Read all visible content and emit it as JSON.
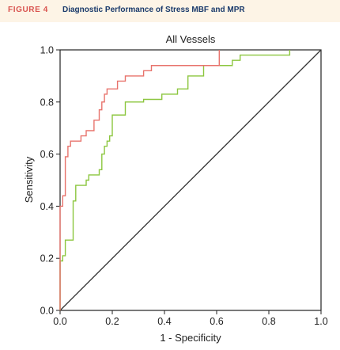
{
  "figure": {
    "label": "FIGURE 4",
    "title": "Diagnostic Performance of Stress MBF and MPR"
  },
  "chart_data": {
    "type": "line",
    "title": "All Vessels",
    "xlabel": "1 - Specificity",
    "ylabel": "Sensitivity",
    "xlim": [
      0,
      1
    ],
    "ylim": [
      0,
      1
    ],
    "x_ticks": [
      "0.0",
      "0.2",
      "0.4",
      "0.6",
      "0.8",
      "1.0"
    ],
    "y_ticks": [
      "0.0",
      "0.2",
      "0.4",
      "0.6",
      "0.8",
      "1.0"
    ],
    "grid": false,
    "legend": "none",
    "colors": {
      "red": "#e8736c",
      "green": "#8cc63f",
      "reference": "#333333"
    },
    "series": [
      {
        "color": "red",
        "x": [
          0,
          0,
          0.01,
          0.01,
          0.02,
          0.02,
          0.03,
          0.03,
          0.04,
          0.04,
          0.08,
          0.08,
          0.1,
          0.1,
          0.13,
          0.13,
          0.15,
          0.15,
          0.16,
          0.16,
          0.17,
          0.17,
          0.18,
          0.18,
          0.22,
          0.22,
          0.25,
          0.25,
          0.32,
          0.32,
          0.35,
          0.35,
          0.61,
          0.61
        ],
        "y": [
          0,
          0.4,
          0.4,
          0.44,
          0.44,
          0.59,
          0.59,
          0.63,
          0.63,
          0.65,
          0.65,
          0.67,
          0.67,
          0.69,
          0.69,
          0.73,
          0.73,
          0.77,
          0.77,
          0.8,
          0.8,
          0.83,
          0.83,
          0.85,
          0.85,
          0.88,
          0.88,
          0.9,
          0.9,
          0.92,
          0.92,
          0.94,
          0.94,
          1.0
        ]
      },
      {
        "color": "green",
        "x": [
          0,
          0,
          0.01,
          0.01,
          0.02,
          0.02,
          0.05,
          0.05,
          0.06,
          0.06,
          0.1,
          0.1,
          0.11,
          0.11,
          0.15,
          0.15,
          0.16,
          0.16,
          0.17,
          0.17,
          0.18,
          0.18,
          0.19,
          0.19,
          0.2,
          0.2,
          0.25,
          0.25,
          0.32,
          0.32,
          0.39,
          0.39,
          0.45,
          0.45,
          0.49,
          0.49,
          0.55,
          0.55,
          0.66,
          0.66,
          0.69,
          0.69,
          0.88,
          0.88
        ],
        "y": [
          0,
          0.19,
          0.19,
          0.21,
          0.21,
          0.27,
          0.27,
          0.42,
          0.42,
          0.48,
          0.48,
          0.5,
          0.5,
          0.52,
          0.52,
          0.54,
          0.54,
          0.6,
          0.6,
          0.63,
          0.63,
          0.65,
          0.65,
          0.67,
          0.67,
          0.75,
          0.75,
          0.8,
          0.8,
          0.81,
          0.81,
          0.83,
          0.83,
          0.85,
          0.85,
          0.9,
          0.9,
          0.94,
          0.94,
          0.96,
          0.96,
          0.98,
          0.98,
          1.0
        ]
      },
      {
        "color": "reference",
        "x": [
          0,
          1
        ],
        "y": [
          0,
          1
        ]
      }
    ]
  }
}
